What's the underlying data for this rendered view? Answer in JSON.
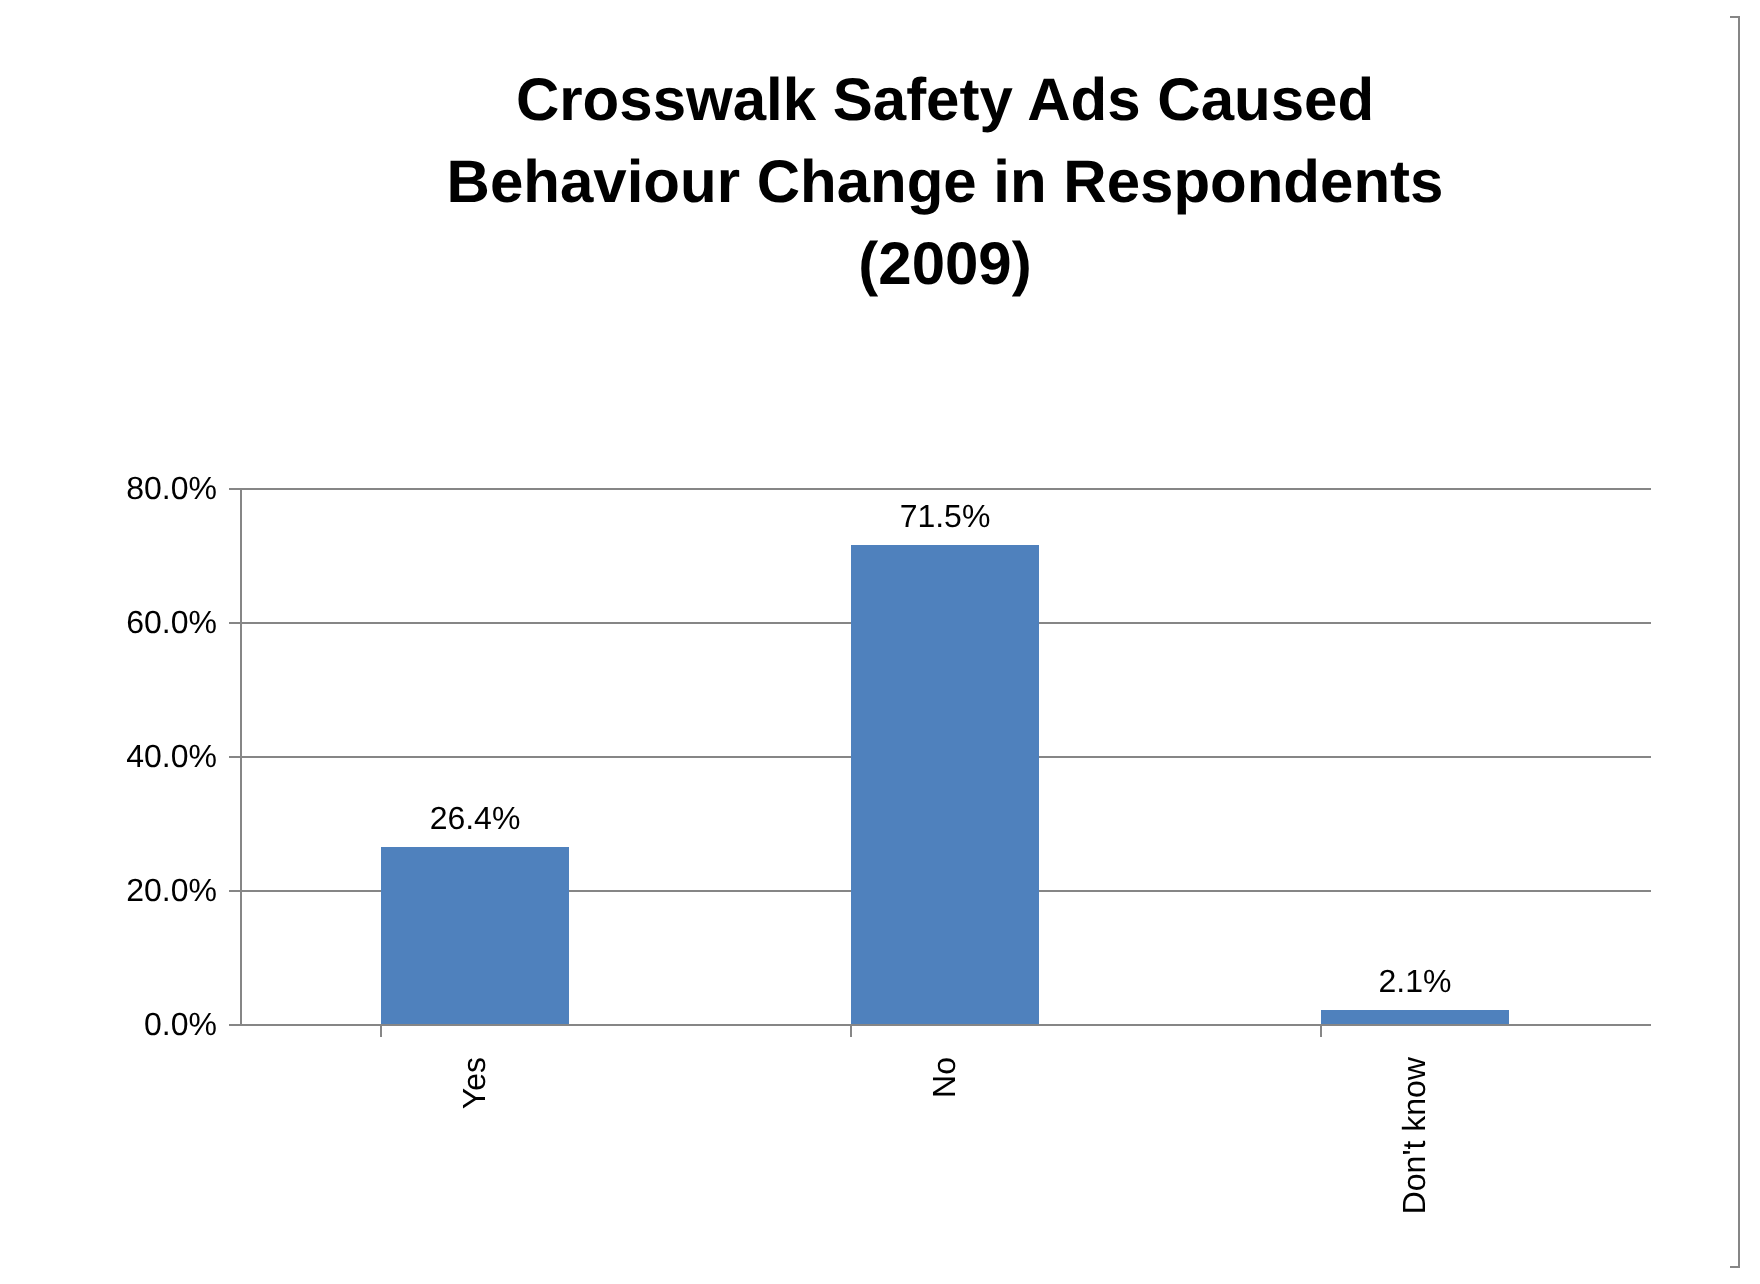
{
  "chart_data": {
    "type": "bar",
    "title": "Crosswalk Safety Ads Caused Behaviour Change in Respondents (2009)",
    "categories": [
      "Yes",
      "No",
      "Don't know"
    ],
    "values": [
      26.4,
      71.5,
      2.1
    ],
    "value_labels": [
      "26.4%",
      "71.5%",
      "2.1%"
    ],
    "color": "#4f81bd",
    "ylim": [
      0,
      80
    ],
    "yticks": [
      {
        "value": 0,
        "label": "0.0%"
      },
      {
        "value": 20,
        "label": "20.0%"
      },
      {
        "value": 40,
        "label": "40.0%"
      },
      {
        "value": 60,
        "label": "60.0%"
      },
      {
        "value": 80,
        "label": "80.0%"
      }
    ],
    "grid": "y"
  }
}
